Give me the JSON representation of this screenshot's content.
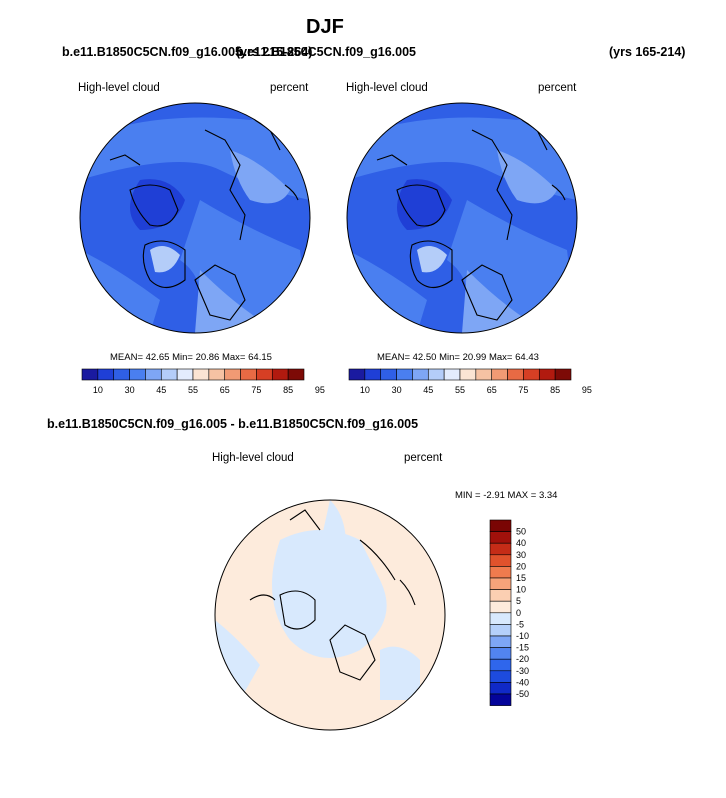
{
  "title": "DJF",
  "panels": [
    {
      "case_left": "b.e11.B1850C5CN.f09_g16.005",
      "case_right": "b.e11.B1850C5CN.f09_g16.005",
      "yrs_left": "(yrs 215-264)",
      "yrs_right": "(yrs 165-214)",
      "variable": "High-level cloud",
      "units": "percent",
      "stats": {
        "mean_label": "MEAN=",
        "mean": "42.65",
        "min_label": "Min=",
        "min": "20.86",
        "max_label": "Max=",
        "max": "64.15"
      }
    },
    {
      "variable": "High-level cloud",
      "units": "percent",
      "stats": {
        "mean_label": "MEAN=",
        "mean": "42.50",
        "min_label": "Min=",
        "min": "20.99",
        "max_label": "Max=",
        "max": "64.43"
      }
    }
  ],
  "diff": {
    "title": "b.e11.B1850C5CN.f09_g16.005 - b.e11.B1850C5CN.f09_g16.005",
    "variable": "High-level cloud",
    "units": "percent",
    "min_label": "MIN =",
    "min": "-2.91",
    "max_label": "MAX =",
    "max": "3.34"
  },
  "colors": {
    "abs_palette": [
      "#1a1aa0",
      "#1f3fd6",
      "#2f5fe6",
      "#4a7ff0",
      "#7ea6f5",
      "#b4cdf9",
      "#e3ecfd",
      "#fbe4d3",
      "#f6c2a3",
      "#f19a74",
      "#e86a44",
      "#d63f24",
      "#b11a0f",
      "#7d0a06"
    ],
    "diff_palette": [
      "#04049a",
      "#1029c7",
      "#1d4bde",
      "#2f66ec",
      "#5284f0",
      "#7ea6f5",
      "#b5d0fa",
      "#d8e9fd",
      "#fdebdc",
      "#fbcfb2",
      "#f6a37a",
      "#ef7b4e",
      "#e0522c",
      "#c52c17",
      "#a1110b",
      "#7a0504"
    ]
  },
  "chart_data": [
    {
      "type": "heatmap",
      "title": "DJF",
      "subtitle": "b.e11.B1850C5CN.f09_g16.005 (yrs 215-264)",
      "variable": "High-level cloud",
      "units": "percent",
      "mean": 42.65,
      "min": 20.86,
      "max": 64.15,
      "colorbar_levels": [
        10,
        30,
        45,
        55,
        65,
        75,
        85,
        95
      ],
      "colorbar_bins": 14
    },
    {
      "type": "heatmap",
      "title": "DJF",
      "subtitle": "b.e11.B1850C5CN.f09_g16.005 (yrs 165-214)",
      "variable": "High-level cloud",
      "units": "percent",
      "mean": 42.5,
      "min": 20.99,
      "max": 64.43,
      "colorbar_levels": [
        10,
        30,
        45,
        55,
        65,
        75,
        85,
        95
      ],
      "colorbar_bins": 14
    },
    {
      "type": "heatmap",
      "title": "b.e11.B1850C5CN.f09_g16.005 - b.e11.B1850C5CN.f09_g16.005",
      "variable": "High-level cloud",
      "units": "percent",
      "min": -2.91,
      "max": 3.34,
      "colorbar_levels": [
        50,
        40,
        30,
        20,
        15,
        10,
        5,
        0,
        -5,
        -10,
        -15,
        -20,
        -30,
        -40,
        -50
      ]
    }
  ]
}
